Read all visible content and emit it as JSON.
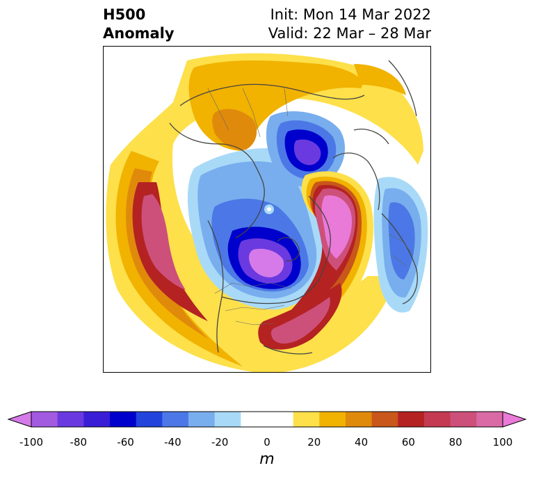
{
  "title": {
    "line1": "H500",
    "line2": "Anomaly"
  },
  "subtitle": {
    "init": "Init: Mon 14 Mar 2022",
    "valid": "Valid: 22 Mar – 28 Mar"
  },
  "colorbar": {
    "ticks": [
      "-100",
      "-80",
      "-60",
      "-40",
      "-20",
      "0",
      "20",
      "40",
      "60",
      "80",
      "100"
    ],
    "unit": "m",
    "min_color": "#d57ae8",
    "max_color": "#e97ad8",
    "colors": [
      "#a25ae0",
      "#6a3ae0",
      "#3a1ed6",
      "#0000cc",
      "#2244dd",
      "#4b78e6",
      "#78aeee",
      "#a8daf8",
      "#ffffff",
      "#ffffff",
      "#fde04a",
      "#f1b200",
      "#e08a0c",
      "#c9561a",
      "#b42222",
      "#c33a52",
      "#cc507a",
      "#d96aa6"
    ]
  }
}
